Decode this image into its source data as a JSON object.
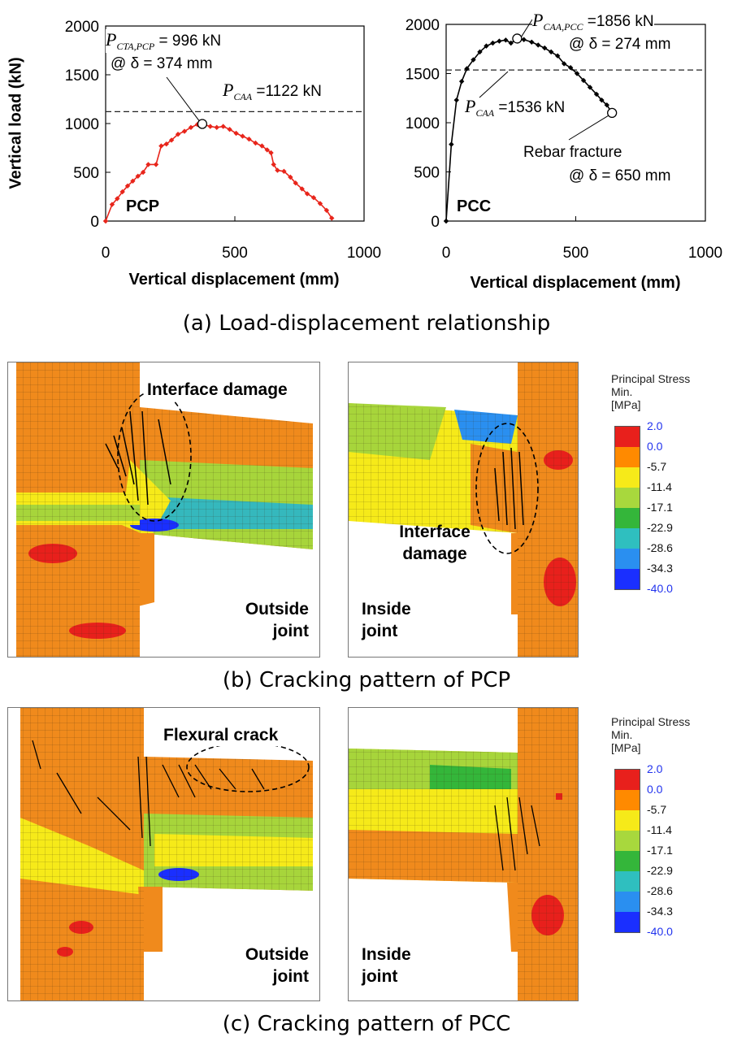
{
  "figure": {
    "captions": {
      "a": "(a) Load-displacement relationship",
      "b": "(b) Cracking pattern of PCP",
      "c": "(c) Cracking pattern of PCC"
    }
  },
  "chart_data": [
    {
      "type": "line",
      "panel_label": "PCP",
      "xlabel": "Vertical displacement (mm)",
      "ylabel": "Vertical load (kN)",
      "xlim": [
        0,
        1000
      ],
      "ylim": [
        0,
        2000
      ],
      "xticks": [
        "0",
        "500",
        "1000"
      ],
      "yticks": [
        "0",
        "500",
        "1000",
        "1500",
        "2000"
      ],
      "series_color": "#e8251b",
      "x": [
        0,
        25,
        45,
        65,
        85,
        105,
        125,
        145,
        165,
        195,
        215,
        235,
        255,
        280,
        305,
        330,
        355,
        374,
        405,
        430,
        455,
        480,
        505,
        530,
        555,
        580,
        605,
        625,
        640,
        650,
        665,
        690,
        715,
        735,
        760,
        780,
        805,
        830,
        855,
        875
      ],
      "y": [
        0,
        170,
        230,
        300,
        360,
        410,
        460,
        500,
        580,
        580,
        770,
        790,
        830,
        890,
        920,
        960,
        990,
        996,
        970,
        960,
        970,
        940,
        900,
        870,
        840,
        800,
        770,
        730,
        700,
        580,
        520,
        510,
        450,
        390,
        330,
        280,
        240,
        180,
        110,
        30
      ],
      "reference_line": {
        "y": 1122
      },
      "marker": {
        "x": 374,
        "y": 996
      },
      "annotations": {
        "peak_symbol": "P",
        "peak_subscript": "CTA,PCP",
        "peak_value": " = 996 kN",
        "peak_at": "@ δ = 374 mm",
        "ref_symbol": "P",
        "ref_subscript": "CAA",
        "ref_value": " =1122 kN"
      }
    },
    {
      "type": "line",
      "panel_label": "PCC",
      "xlabel": "Vertical displacement (mm)",
      "ylabel": "",
      "xlim": [
        0,
        1000
      ],
      "ylim": [
        0,
        2000
      ],
      "xticks": [
        "0",
        "500",
        "1000"
      ],
      "yticks": [
        "0",
        "500",
        "1000",
        "1500",
        "2000"
      ],
      "series_color": "#000000",
      "x": [
        0,
        20,
        40,
        60,
        80,
        105,
        130,
        155,
        180,
        205,
        230,
        250,
        274,
        300,
        330,
        355,
        380,
        405,
        430,
        455,
        480,
        505,
        530,
        555,
        580,
        600,
        620,
        640
      ],
      "y": [
        0,
        780,
        1230,
        1420,
        1550,
        1640,
        1720,
        1780,
        1810,
        1830,
        1840,
        1810,
        1856,
        1845,
        1820,
        1790,
        1760,
        1720,
        1680,
        1600,
        1560,
        1500,
        1430,
        1360,
        1290,
        1230,
        1180,
        1100
      ],
      "reference_line": {
        "y": 1536
      },
      "marker": {
        "x": 274,
        "y": 1856
      },
      "end_marker": {
        "x": 640,
        "y": 1100
      },
      "annotations": {
        "peak_symbol": "P",
        "peak_subscript": "CAA,PCC",
        "peak_value": " =1856 kN",
        "peak_at": "@ δ = 274 mm",
        "ref_symbol": "P",
        "ref_subscript": "CAA",
        "ref_value": " =1536 kN",
        "fracture_line1": "Rebar fracture",
        "fracture_line2": "@ δ = 650 mm"
      }
    }
  ],
  "fe_panels": {
    "b_left": {
      "line1": "Outside",
      "line2": "joint",
      "callout": "Interface damage"
    },
    "b_right": {
      "line1": "Inside",
      "line2": "joint",
      "callout_line1": "Interface",
      "callout_line2": "damage"
    },
    "c_left": {
      "line1": "Outside",
      "line2": "joint",
      "callout": "Flexural crack"
    },
    "c_right": {
      "line1": "Inside",
      "line2": "joint"
    }
  },
  "legend": {
    "title1": "Principal Stress",
    "title2": "Min.",
    "title3": "[MPa]",
    "values": [
      "2.0",
      "0.0",
      "-5.7",
      "-11.4",
      "-17.1",
      "-22.9",
      "-28.6",
      "-34.3",
      "-40.0"
    ],
    "colors": [
      "#e8201c",
      "#ff8a00",
      "#f6ea19",
      "#a8d83d",
      "#34b63a",
      "#2fbfbf",
      "#2a8ff0",
      "#1a2fff"
    ]
  }
}
